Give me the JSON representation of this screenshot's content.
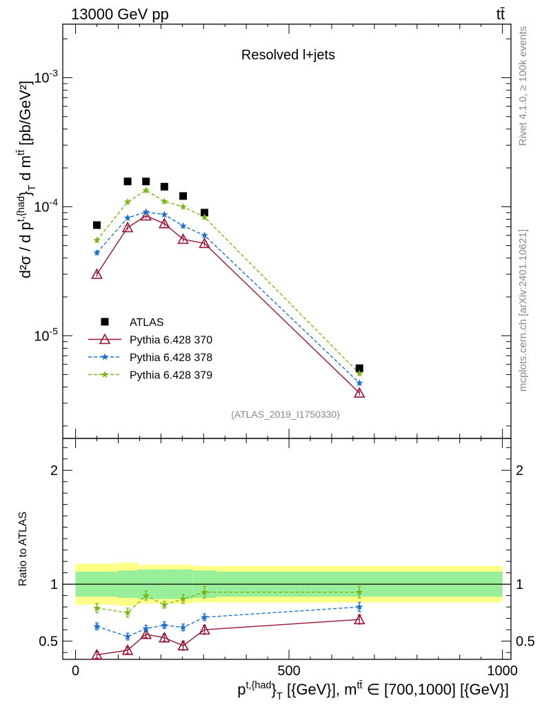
{
  "header": {
    "left": "13000 GeV pp",
    "right": "tt̄"
  },
  "side_labels": {
    "rivet": "Rivet 4.1.0, ≥ 100k events",
    "mcplots": "mcplots.cern.ch [arXiv:2401.10621]"
  },
  "chart_data": {
    "type": "scatter",
    "title": "Resolved l+jets",
    "analysis_tag": "(ATLAS_2019_I1750330)",
    "xlabel": "p^{t,{had}}_{T} [{GeV}], m^{tt̄} ∈ [700,1000] [{GeV}]",
    "xlim": [
      -30,
      1020
    ],
    "x_ticks": [
      "0",
      "500",
      "1000"
    ],
    "main_panel": {
      "ylabel": "d²σ / d p^{t,{had}}_{T} d m^{tt̄} [pb/GeV²]",
      "yscale": "log",
      "ylim": [
        1.6e-06,
        0.0026
      ],
      "y_ticks": [
        "10^{-5}",
        "10^{-4}",
        "10^{-3}"
      ]
    },
    "ratio_panel": {
      "ylabel": "Ratio to ATLAS",
      "ylim": [
        0.34,
        2.28
      ],
      "y_ticks": [
        "0.5",
        "1",
        "2"
      ],
      "ref_line": 1.0
    },
    "x": [
      50,
      122,
      165,
      208,
      252,
      302,
      665
    ],
    "bin_edges": [
      0,
      100,
      145,
      185,
      230,
      275,
      330,
      1000
    ],
    "band_green": [
      0.11,
      0.12,
      0.13,
      0.13,
      0.13,
      0.12,
      0.11
    ],
    "band_yellow": [
      0.18,
      0.19,
      0.17,
      0.17,
      0.17,
      0.16,
      0.16
    ],
    "series": [
      {
        "name": "ATLAS",
        "marker": "square",
        "color": "#000000",
        "values": [
          7.2e-05,
          0.000157,
          0.000157,
          0.000143,
          0.000121,
          9e-05,
          5.6e-06
        ]
      },
      {
        "name": "Pythia 6.428 370",
        "marker": "triangle-open",
        "line": "solid",
        "color": "#9a1030",
        "values": [
          3e-05,
          6.9e-05,
          8.5e-05,
          7.4e-05,
          5.6e-05,
          5.2e-05,
          3.6e-06
        ],
        "ratio": [
          0.38,
          0.42,
          0.56,
          0.53,
          0.46,
          0.6,
          0.69
        ],
        "ratio_err": [
          0.03,
          0.03,
          0.03,
          0.03,
          0.04,
          0.04,
          0.04
        ]
      },
      {
        "name": "Pythia 6.428 378",
        "marker": "star",
        "line": "dashed",
        "color": "#1f6fd0",
        "values": [
          4.4e-05,
          8.2e-05,
          9.1e-05,
          8.7e-05,
          7.1e-05,
          6e-05,
          4.3e-06
        ],
        "ratio": [
          0.63,
          0.54,
          0.61,
          0.64,
          0.62,
          0.71,
          0.8
        ],
        "ratio_err": [
          0.03,
          0.03,
          0.03,
          0.03,
          0.03,
          0.03,
          0.04
        ]
      },
      {
        "name": "Pythia 6.428 379",
        "marker": "star",
        "line": "dashed",
        "color": "#7cb518",
        "values": [
          5.5e-05,
          0.000109,
          0.000134,
          0.00011,
          0.0001,
          8.3e-05,
          5.1e-06
        ],
        "ratio": [
          0.79,
          0.75,
          0.9,
          0.82,
          0.87,
          0.93,
          0.93
        ],
        "ratio_err": [
          0.04,
          0.04,
          0.04,
          0.03,
          0.04,
          0.05,
          0.05
        ]
      }
    ]
  }
}
